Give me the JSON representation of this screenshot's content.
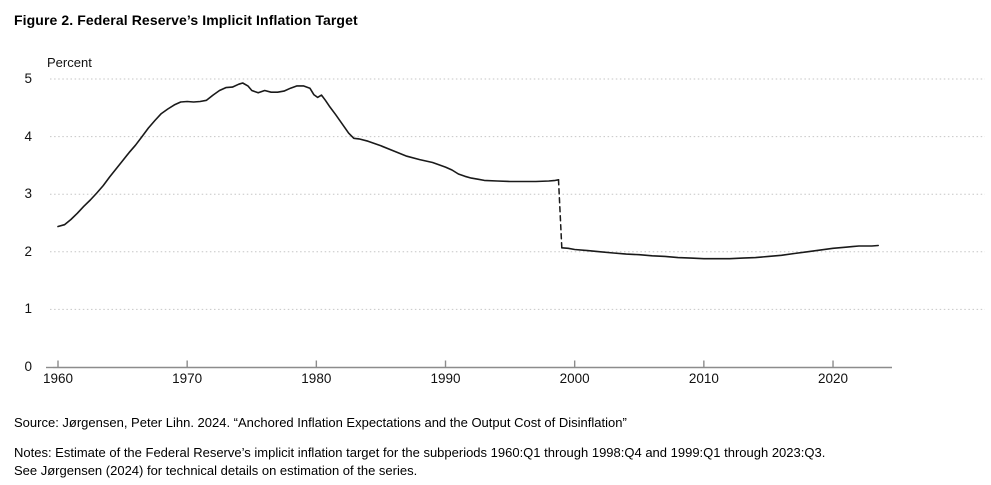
{
  "title": "Figure 2. Federal Reserve’s Implicit Inflation Target",
  "source_text": "Source: Jørgensen, Peter Lihn. 2024. “Anchored Inflation Expectations and the Output Cost of Disinflation”",
  "notes_text": "Notes: Estimate of the Federal Reserve’s implicit inflation target for the subperiods 1960:Q1 through 1998:Q4 and 1999:Q1 through 2023:Q3.\nSee Jørgensen (2024) for technical details on estimation of the series.",
  "chart_data": {
    "type": "line",
    "title": "Figure 2. Federal Reserve’s Implicit Inflation Target",
    "ylabel": "Percent",
    "xlabel": "",
    "ylim": [
      0,
      5
    ],
    "xlim": [
      1959.6,
      2024.6
    ],
    "yticks": [
      0,
      1,
      2,
      3,
      4,
      5
    ],
    "xticks": [
      1960,
      1970,
      1980,
      1990,
      2000,
      2010,
      2020
    ],
    "grid": "horizontal-dotted",
    "legend": "none",
    "line_color": "#1a1a1a",
    "series": [
      {
        "name": "Implicit inflation target, 1960:Q1–1998:Q4",
        "style": "solid",
        "points": [
          [
            1960.0,
            2.44
          ],
          [
            1960.5,
            2.47
          ],
          [
            1961.0,
            2.56
          ],
          [
            1961.5,
            2.67
          ],
          [
            1962.0,
            2.79
          ],
          [
            1962.5,
            2.9
          ],
          [
            1963.0,
            3.02
          ],
          [
            1963.5,
            3.15
          ],
          [
            1964.0,
            3.3
          ],
          [
            1964.5,
            3.44
          ],
          [
            1965.0,
            3.58
          ],
          [
            1965.5,
            3.72
          ],
          [
            1966.0,
            3.85
          ],
          [
            1966.5,
            4.0
          ],
          [
            1967.0,
            4.15
          ],
          [
            1967.5,
            4.28
          ],
          [
            1968.0,
            4.4
          ],
          [
            1968.5,
            4.48
          ],
          [
            1969.0,
            4.55
          ],
          [
            1969.5,
            4.6
          ],
          [
            1970.0,
            4.61
          ],
          [
            1970.5,
            4.6
          ],
          [
            1971.0,
            4.61
          ],
          [
            1971.5,
            4.63
          ],
          [
            1972.0,
            4.72
          ],
          [
            1972.5,
            4.8
          ],
          [
            1973.0,
            4.85
          ],
          [
            1973.5,
            4.86
          ],
          [
            1974.0,
            4.91
          ],
          [
            1974.3,
            4.93
          ],
          [
            1974.7,
            4.88
          ],
          [
            1975.0,
            4.8
          ],
          [
            1975.5,
            4.76
          ],
          [
            1976.0,
            4.8
          ],
          [
            1976.5,
            4.77
          ],
          [
            1977.0,
            4.77
          ],
          [
            1977.5,
            4.79
          ],
          [
            1978.0,
            4.84
          ],
          [
            1978.5,
            4.88
          ],
          [
            1979.0,
            4.88
          ],
          [
            1979.5,
            4.84
          ],
          [
            1979.8,
            4.73
          ],
          [
            1980.1,
            4.68
          ],
          [
            1980.4,
            4.72
          ],
          [
            1980.7,
            4.63
          ],
          [
            1981.0,
            4.53
          ],
          [
            1981.5,
            4.38
          ],
          [
            1982.0,
            4.22
          ],
          [
            1982.5,
            4.06
          ],
          [
            1982.9,
            3.97
          ],
          [
            1983.3,
            3.96
          ],
          [
            1984.0,
            3.92
          ],
          [
            1985.0,
            3.84
          ],
          [
            1986.0,
            3.75
          ],
          [
            1987.0,
            3.66
          ],
          [
            1988.0,
            3.6
          ],
          [
            1989.0,
            3.55
          ],
          [
            1990.0,
            3.47
          ],
          [
            1990.5,
            3.42
          ],
          [
            1991.0,
            3.35
          ],
          [
            1991.5,
            3.31
          ],
          [
            1992.0,
            3.28
          ],
          [
            1992.5,
            3.26
          ],
          [
            1993.0,
            3.24
          ],
          [
            1994.0,
            3.23
          ],
          [
            1995.0,
            3.22
          ],
          [
            1996.0,
            3.22
          ],
          [
            1997.0,
            3.22
          ],
          [
            1998.0,
            3.23
          ],
          [
            1998.5,
            3.24
          ],
          [
            1998.75,
            3.25
          ]
        ]
      },
      {
        "name": "Implicit inflation target, 1999:Q1–2023:Q3",
        "style": "solid",
        "points": [
          [
            1999.0,
            2.07
          ],
          [
            1999.5,
            2.06
          ],
          [
            2000.0,
            2.04
          ],
          [
            2001.0,
            2.02
          ],
          [
            2002.0,
            2.0
          ],
          [
            2003.0,
            1.98
          ],
          [
            2004.0,
            1.96
          ],
          [
            2005.0,
            1.95
          ],
          [
            2006.0,
            1.93
          ],
          [
            2007.0,
            1.92
          ],
          [
            2008.0,
            1.9
          ],
          [
            2009.0,
            1.89
          ],
          [
            2010.0,
            1.88
          ],
          [
            2011.0,
            1.88
          ],
          [
            2012.0,
            1.88
          ],
          [
            2013.0,
            1.89
          ],
          [
            2014.0,
            1.9
          ],
          [
            2015.0,
            1.92
          ],
          [
            2016.0,
            1.94
          ],
          [
            2017.0,
            1.97
          ],
          [
            2018.0,
            2.0
          ],
          [
            2019.0,
            2.03
          ],
          [
            2020.0,
            2.06
          ],
          [
            2021.0,
            2.08
          ],
          [
            2021.5,
            2.09
          ],
          [
            2022.0,
            2.1
          ],
          [
            2023.0,
            2.1
          ],
          [
            2023.5,
            2.11
          ]
        ]
      }
    ],
    "break_connector": {
      "style": "dashed",
      "from": [
        1998.75,
        3.25
      ],
      "to": [
        1999.0,
        2.07
      ]
    }
  }
}
